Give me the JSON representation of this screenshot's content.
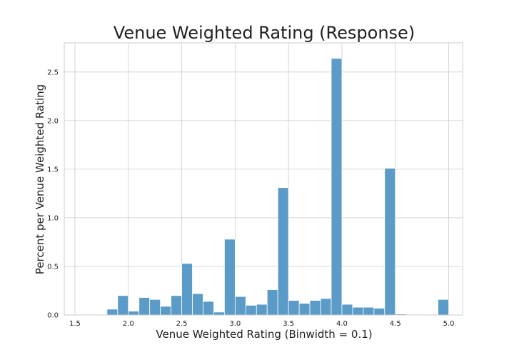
{
  "chart_data": {
    "type": "bar",
    "title": "Venue Weighted Rating (Response)",
    "xlabel": "Venue Weighted Rating (Binwidth = 0.1)",
    "ylabel": "Percent per Venue Weighted Rating",
    "xlim": [
      1.4,
      5.13
    ],
    "ylim": [
      0,
      2.8
    ],
    "xticks": [
      "1.5",
      "2.0",
      "2.5",
      "3.0",
      "3.5",
      "4.0",
      "4.5",
      "5.0"
    ],
    "yticks": [
      "0.0",
      "0.5",
      "1.0",
      "1.5",
      "2.0",
      "2.5"
    ],
    "grid": true,
    "bar_color": "#4c93c3",
    "bin_width": 0.1,
    "bins": [
      {
        "start": 1.8,
        "value": 0.06
      },
      {
        "start": 1.9,
        "value": 0.2
      },
      {
        "start": 2.0,
        "value": 0.04
      },
      {
        "start": 2.1,
        "value": 0.18
      },
      {
        "start": 2.2,
        "value": 0.16
      },
      {
        "start": 2.3,
        "value": 0.09
      },
      {
        "start": 2.4,
        "value": 0.2
      },
      {
        "start": 2.5,
        "value": 0.53
      },
      {
        "start": 2.6,
        "value": 0.22
      },
      {
        "start": 2.7,
        "value": 0.14
      },
      {
        "start": 2.8,
        "value": 0.03
      },
      {
        "start": 2.9,
        "value": 0.78
      },
      {
        "start": 3.0,
        "value": 0.19
      },
      {
        "start": 3.1,
        "value": 0.1
      },
      {
        "start": 3.2,
        "value": 0.11
      },
      {
        "start": 3.3,
        "value": 0.26
      },
      {
        "start": 3.4,
        "value": 1.31
      },
      {
        "start": 3.5,
        "value": 0.15
      },
      {
        "start": 3.6,
        "value": 0.12
      },
      {
        "start": 3.7,
        "value": 0.15
      },
      {
        "start": 3.8,
        "value": 0.17
      },
      {
        "start": 3.9,
        "value": 2.64
      },
      {
        "start": 4.0,
        "value": 0.11
      },
      {
        "start": 4.1,
        "value": 0.08
      },
      {
        "start": 4.2,
        "value": 0.08
      },
      {
        "start": 4.3,
        "value": 0.07
      },
      {
        "start": 4.4,
        "value": 1.51
      },
      {
        "start": 4.5,
        "value": 0.01
      },
      {
        "start": 4.9,
        "value": 0.16
      }
    ]
  }
}
